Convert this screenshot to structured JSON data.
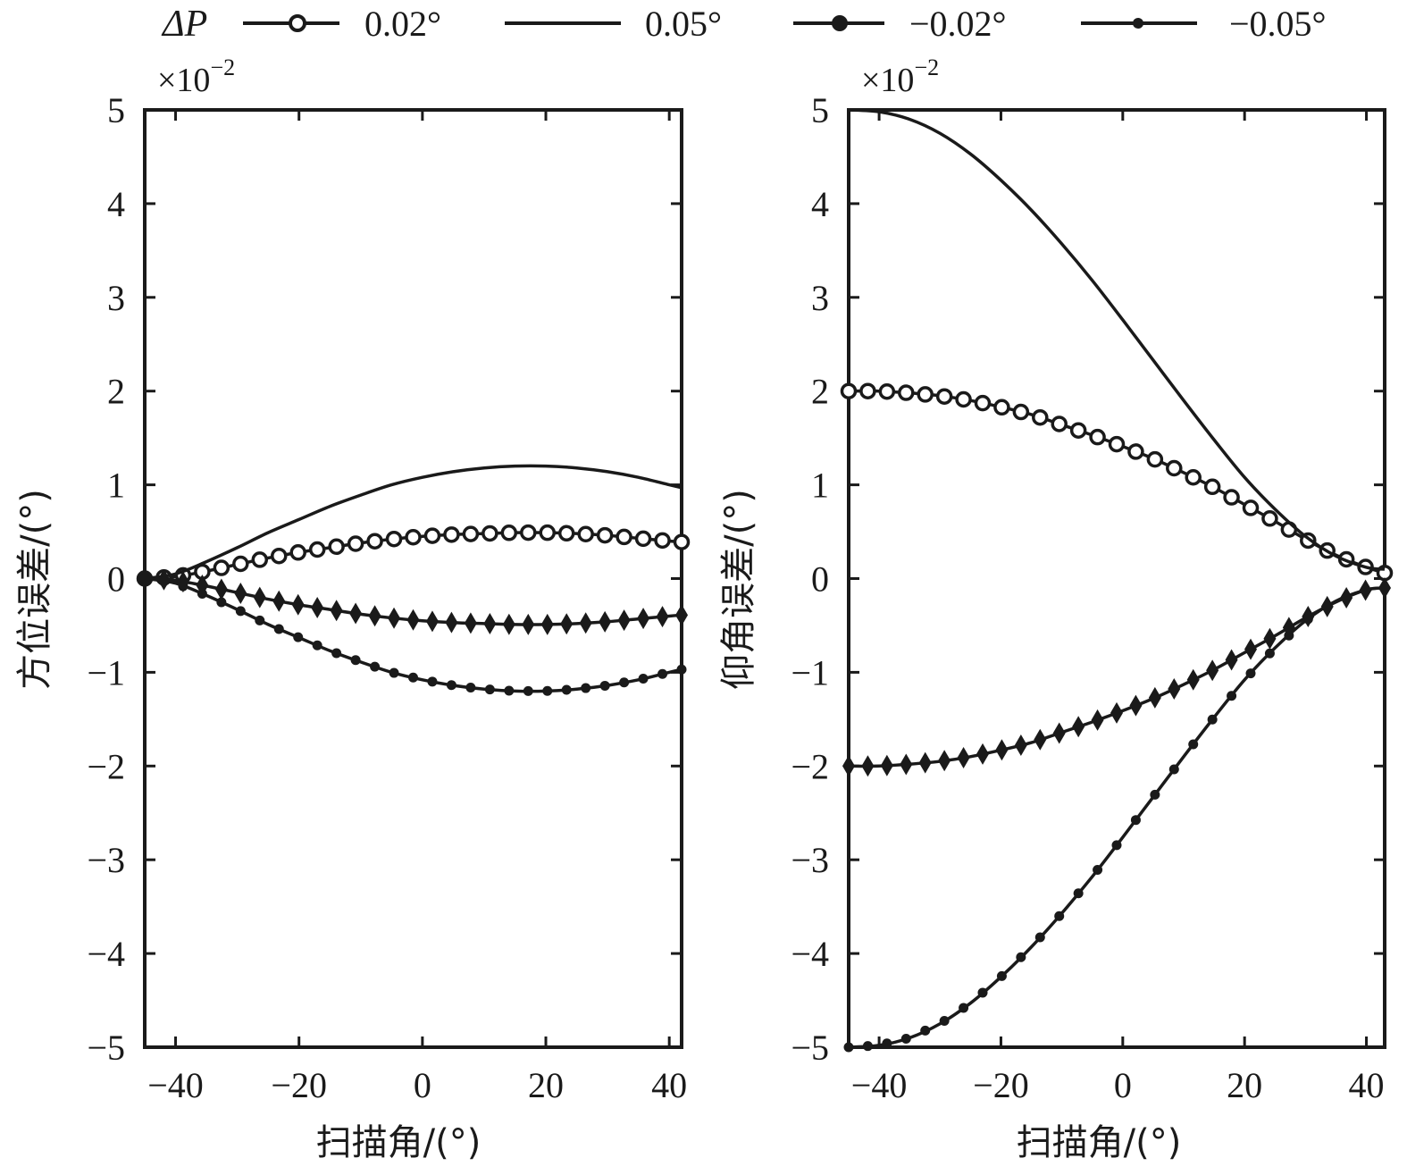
{
  "legend": {
    "title": "ΔP",
    "entries": [
      {
        "label": "0.02°",
        "marker": "open-circle"
      },
      {
        "label": "0.05°",
        "marker": "none"
      },
      {
        "label": "−0.02°",
        "marker": "diamond"
      },
      {
        "label": "−0.05°",
        "marker": "dot"
      }
    ]
  },
  "chart_data": [
    {
      "type": "line",
      "title": "",
      "scale_label": "×10",
      "scale_exponent": "−2",
      "xlabel": "扫描角/(°)",
      "ylabel": "方位误差/(°)",
      "xlim": [
        -45,
        42
      ],
      "ylim": [
        -5,
        5
      ],
      "xticks": [
        -40,
        -20,
        0,
        20,
        40
      ],
      "xtick_labels": [
        "−40",
        "−20",
        "0",
        "20",
        "40"
      ],
      "yticks": [
        5,
        4,
        3,
        2,
        1,
        0,
        -1,
        -2,
        -3,
        -4,
        -5
      ],
      "ytick_labels": [
        "5",
        "4",
        "3",
        "2",
        "1",
        "0",
        "−1",
        "−2",
        "−3",
        "−4",
        "−5"
      ],
      "series": [
        {
          "name": "0.02°",
          "x": [
            -45,
            -40,
            -35,
            -30,
            -25,
            -20,
            -15,
            -10,
            -5,
            0,
            5,
            10,
            15,
            20,
            25,
            30,
            35,
            40,
            42
          ],
          "values": [
            0,
            0.02,
            0.08,
            0.15,
            0.22,
            0.28,
            0.33,
            0.38,
            0.42,
            0.45,
            0.47,
            0.48,
            0.49,
            0.49,
            0.48,
            0.46,
            0.43,
            0.4,
            0.39
          ]
        },
        {
          "name": "0.05°",
          "x": [
            -45,
            -40,
            -35,
            -30,
            -25,
            -20,
            -15,
            -10,
            -5,
            0,
            5,
            10,
            15,
            20,
            25,
            30,
            35,
            40,
            42
          ],
          "values": [
            0,
            0.05,
            0.18,
            0.33,
            0.49,
            0.63,
            0.77,
            0.89,
            1.0,
            1.08,
            1.14,
            1.18,
            1.2,
            1.2,
            1.18,
            1.14,
            1.08,
            1.0,
            0.97
          ]
        },
        {
          "name": "−0.02°",
          "x": [
            -45,
            -40,
            -35,
            -30,
            -25,
            -20,
            -15,
            -10,
            -5,
            0,
            5,
            10,
            15,
            20,
            25,
            30,
            35,
            40,
            42
          ],
          "values": [
            0,
            -0.02,
            -0.08,
            -0.15,
            -0.22,
            -0.28,
            -0.33,
            -0.38,
            -0.42,
            -0.45,
            -0.47,
            -0.48,
            -0.49,
            -0.49,
            -0.48,
            -0.46,
            -0.43,
            -0.4,
            -0.39
          ]
        },
        {
          "name": "−0.05°",
          "x": [
            -45,
            -40,
            -35,
            -30,
            -25,
            -20,
            -15,
            -10,
            -5,
            0,
            5,
            10,
            15,
            20,
            25,
            30,
            35,
            40,
            42
          ],
          "values": [
            0,
            -0.05,
            -0.18,
            -0.33,
            -0.49,
            -0.63,
            -0.77,
            -0.89,
            -1.0,
            -1.08,
            -1.14,
            -1.18,
            -1.2,
            -1.2,
            -1.18,
            -1.14,
            -1.08,
            -1.0,
            -0.97
          ]
        }
      ]
    },
    {
      "type": "line",
      "title": "",
      "scale_label": "×10",
      "scale_exponent": "−2",
      "xlabel": "扫描角/(°)",
      "ylabel": "仰角误差/(°)",
      "xlim": [
        -45,
        43
      ],
      "ylim": [
        -5,
        5
      ],
      "xticks": [
        -40,
        -20,
        0,
        20,
        40
      ],
      "xtick_labels": [
        "−40",
        "−20",
        "0",
        "20",
        "40"
      ],
      "yticks": [
        5,
        4,
        3,
        2,
        1,
        0,
        -1,
        -2,
        -3,
        -4,
        -5
      ],
      "ytick_labels": [
        "5",
        "4",
        "3",
        "2",
        "1",
        "0",
        "−1",
        "−2",
        "−3",
        "−4",
        "−5"
      ],
      "series": [
        {
          "name": "0.02°",
          "x": [
            -45,
            -40,
            -35,
            -30,
            -25,
            -20,
            -15,
            -10,
            -5,
            0,
            5,
            10,
            15,
            20,
            25,
            30,
            35,
            40,
            43
          ],
          "values": [
            2.0,
            2.0,
            1.98,
            1.95,
            1.9,
            1.83,
            1.75,
            1.64,
            1.53,
            1.41,
            1.28,
            1.13,
            0.97,
            0.79,
            0.61,
            0.42,
            0.25,
            0.12,
            0.06
          ]
        },
        {
          "name": "0.05°",
          "x": [
            -45,
            -40,
            -35,
            -30,
            -25,
            -20,
            -15,
            -10,
            -5,
            0,
            5,
            10,
            15,
            20,
            25,
            30,
            35,
            40,
            43
          ],
          "values": [
            5.0,
            4.98,
            4.9,
            4.75,
            4.53,
            4.25,
            3.93,
            3.57,
            3.18,
            2.76,
            2.33,
            1.9,
            1.48,
            1.08,
            0.74,
            0.45,
            0.24,
            0.12,
            0.1
          ]
        },
        {
          "name": "−0.02°",
          "x": [
            -45,
            -40,
            -35,
            -30,
            -25,
            -20,
            -15,
            -10,
            -5,
            0,
            5,
            10,
            15,
            20,
            25,
            30,
            35,
            40,
            43
          ],
          "values": [
            -2.0,
            -2.0,
            -1.98,
            -1.95,
            -1.9,
            -1.83,
            -1.75,
            -1.64,
            -1.53,
            -1.41,
            -1.28,
            -1.13,
            -0.97,
            -0.79,
            -0.61,
            -0.42,
            -0.25,
            -0.12,
            -0.1
          ]
        },
        {
          "name": "−0.05°",
          "x": [
            -45,
            -40,
            -35,
            -30,
            -25,
            -20,
            -15,
            -10,
            -5,
            0,
            5,
            10,
            15,
            20,
            25,
            30,
            35,
            40,
            43
          ],
          "values": [
            -5.0,
            -4.98,
            -4.9,
            -4.75,
            -4.53,
            -4.25,
            -3.93,
            -3.57,
            -3.18,
            -2.76,
            -2.33,
            -1.9,
            -1.48,
            -1.08,
            -0.74,
            -0.45,
            -0.24,
            -0.12,
            -0.1
          ]
        }
      ]
    }
  ]
}
